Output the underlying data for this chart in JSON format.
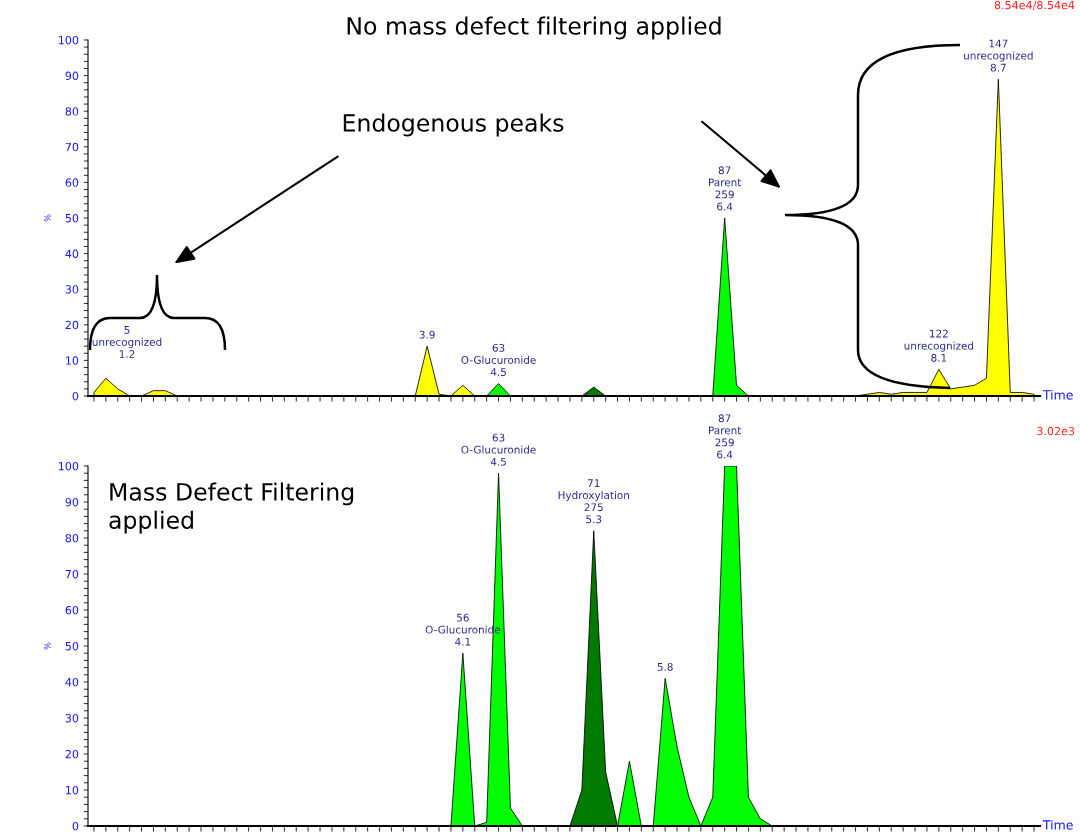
{
  "chart_data": [
    {
      "type": "area",
      "title": "No mass defect filtering applied",
      "xlabel": "Time",
      "ylabel": "%",
      "ylim": [
        0,
        100
      ],
      "yticks": [
        0,
        10,
        20,
        30,
        40,
        50,
        60,
        70,
        80,
        90,
        100
      ],
      "tick_labels": "y",
      "grid": false,
      "legend": false,
      "categories": [
        null,
        null,
        null,
        null,
        null,
        null,
        null,
        null,
        null,
        null,
        null,
        null,
        null,
        null,
        null,
        null,
        null,
        null,
        null,
        null,
        null,
        null,
        null,
        null,
        null,
        null,
        null,
        null,
        null,
        null,
        null,
        null,
        null,
        null,
        null,
        null,
        null,
        null,
        null,
        null,
        null,
        null,
        null,
        null,
        null,
        null,
        null,
        null,
        null,
        null,
        null,
        null,
        null,
        null,
        null,
        null,
        null,
        null,
        null,
        null,
        null,
        null,
        null,
        null,
        null,
        null,
        null,
        null,
        null,
        null,
        null,
        null,
        null,
        null,
        null,
        null,
        null,
        null,
        null,
        null
      ],
      "series": [
        {
          "color": "#ffff00",
          "values": [
            1,
            5,
            2,
            0,
            0,
            1.5,
            1.5,
            0,
            0,
            0,
            0,
            0,
            0,
            0,
            0,
            0,
            0,
            0,
            0,
            0,
            0,
            0,
            0,
            0,
            0,
            0,
            0,
            0,
            14,
            0.5,
            0,
            3,
            0,
            0,
            0,
            0,
            0,
            0,
            0,
            0,
            0,
            0,
            0,
            0,
            0,
            0,
            0,
            0,
            0,
            0,
            0,
            0,
            0,
            0,
            0,
            0,
            0,
            0,
            0,
            0,
            0,
            0,
            0,
            0,
            0,
            0.5,
            1,
            0.5,
            1,
            1,
            1,
            7.5,
            2,
            2.5,
            3,
            5,
            89,
            1,
            1,
            0.5
          ]
        },
        {
          "color": "#00ff00",
          "values": [
            0,
            0,
            0,
            0,
            0,
            0,
            0,
            0,
            0,
            0,
            0,
            0,
            0,
            0,
            0,
            0,
            0,
            0,
            0,
            0,
            0,
            0,
            0,
            0,
            0,
            0,
            0,
            0,
            0,
            0,
            0,
            0,
            0,
            0,
            3.5,
            0,
            0,
            0,
            0,
            0,
            0,
            0,
            0,
            0,
            0,
            0,
            0,
            0,
            0,
            0,
            0,
            0,
            0,
            50,
            3,
            0,
            0,
            0,
            0,
            0,
            0,
            0,
            0,
            0,
            0,
            0,
            0,
            0,
            0,
            0,
            0,
            0,
            0,
            0,
            0,
            0,
            0,
            0,
            0,
            0
          ]
        },
        {
          "color": "#007a00",
          "values": [
            0,
            0,
            0,
            0,
            0,
            0,
            0,
            0,
            0,
            0,
            0,
            0,
            0,
            0,
            0,
            0,
            0,
            0,
            0,
            0,
            0,
            0,
            0,
            0,
            0,
            0,
            0,
            0,
            0,
            0,
            0,
            0,
            0,
            0,
            0,
            0,
            0,
            0,
            0,
            0,
            0,
            0,
            2.5,
            0,
            0,
            0,
            0,
            0,
            0,
            0,
            0,
            0,
            0,
            0,
            0,
            0,
            0,
            0,
            0,
            0,
            0,
            0,
            0,
            0,
            0,
            0,
            0,
            0,
            0,
            0,
            0,
            0,
            0,
            0,
            0,
            0,
            0,
            0,
            0,
            0
          ]
        }
      ],
      "annotations": [
        {
          "text": "3.9",
          "y": 14
        },
        {
          "text": "63\nO-Glucuronide\n4.5",
          "y": 3.5
        },
        {
          "text": "87\nParent\n259\n6.4",
          "y": 50
        },
        {
          "text": "122\nunrecognized\n8.1",
          "y": 7.5
        },
        {
          "text": "147\nunrecognized\n8.7",
          "y": 89
        },
        "5\nunrecognized\n1.2",
        "Endogenous peaks",
        "8.54e4/8.54e4"
      ]
    },
    {
      "type": "area",
      "xlabel": "Time",
      "ylabel": "%",
      "ylim": [
        0,
        100
      ],
      "yticks": [
        0,
        10,
        20,
        30,
        40,
        50,
        60,
        70,
        80,
        90,
        100
      ],
      "tick_labels": "y",
      "grid": false,
      "legend": false,
      "categories": [
        null,
        null,
        null,
        null,
        null,
        null,
        null,
        null,
        null,
        null,
        null,
        null,
        null,
        null,
        null,
        null,
        null,
        null,
        null,
        null,
        null,
        null,
        null,
        null,
        null,
        null,
        null,
        null,
        null,
        null,
        null,
        null,
        null,
        null,
        null,
        null,
        null,
        null,
        null,
        null,
        null,
        null,
        null,
        null,
        null,
        null,
        null,
        null,
        null,
        null,
        null,
        null,
        null,
        null,
        null,
        null,
        null,
        null,
        null,
        null,
        null,
        null,
        null,
        null,
        null,
        null,
        null,
        null,
        null,
        null,
        null,
        null,
        null,
        null,
        null,
        null,
        null,
        null,
        null,
        null
      ],
      "series": [
        {
          "color": "#00ff00",
          "values": [
            0,
            0,
            0,
            0,
            0,
            0,
            0,
            0,
            0,
            0,
            0,
            0,
            0,
            0,
            0,
            0,
            0,
            0,
            0,
            0,
            0,
            0,
            0,
            0,
            0,
            0,
            0,
            0,
            0,
            0,
            0,
            48,
            0,
            1,
            98,
            5,
            0,
            0,
            0,
            0,
            0,
            0,
            0,
            0,
            0,
            18,
            0,
            0,
            41,
            22,
            8,
            0,
            8,
            100,
            100,
            8,
            2,
            0,
            0,
            0,
            0,
            0,
            0,
            0,
            0,
            0,
            0,
            0,
            0,
            0,
            0,
            0,
            0,
            0,
            0,
            0,
            0,
            0,
            0,
            0
          ]
        },
        {
          "color": "#007a00",
          "values": [
            0,
            0,
            0,
            0,
            0,
            0,
            0,
            0,
            0,
            0,
            0,
            0,
            0,
            0,
            0,
            0,
            0,
            0,
            0,
            0,
            0,
            0,
            0,
            0,
            0,
            0,
            0,
            0,
            0,
            0,
            0,
            0,
            0,
            0,
            0,
            0,
            0,
            0,
            0,
            0,
            0,
            10,
            82,
            15,
            0,
            0,
            0,
            0,
            0,
            0,
            0,
            0,
            0,
            0,
            0,
            0,
            0,
            0,
            0,
            0,
            0,
            0,
            0,
            0,
            0,
            0,
            0,
            0,
            0,
            0,
            0,
            0,
            0,
            0,
            0,
            0,
            0,
            0,
            0,
            0
          ]
        }
      ],
      "annotations": [
        {
          "text": "56\nO-Glucuronide\n4.1",
          "y": 48
        },
        {
          "text": "63\nO-Glucuronide\n4.5",
          "y": 98
        },
        {
          "text": "71\nHydroxylation\n275\n5.3",
          "y": 82
        },
        {
          "text": "5.8",
          "y": 41
        },
        {
          "text": "87\nParent\n259\n6.4",
          "y": 100
        },
        "Mass Defect Filtering\napplied",
        "3.02e3"
      ]
    }
  ]
}
